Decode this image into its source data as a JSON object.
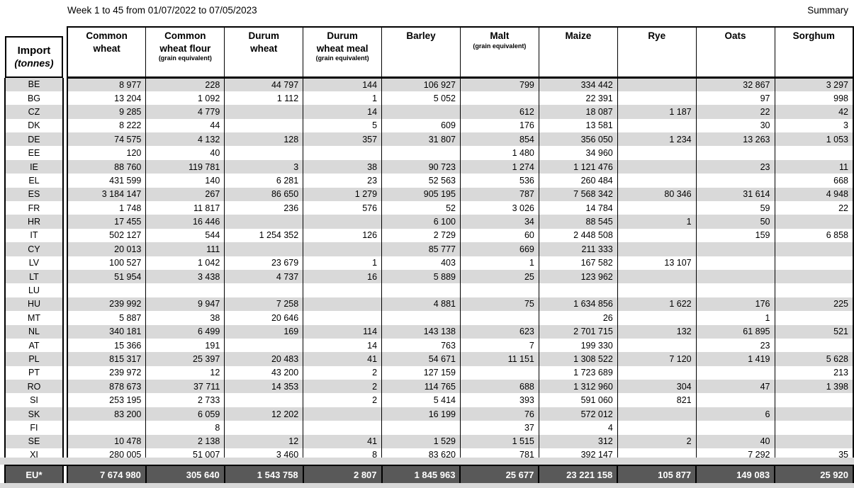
{
  "page": {
    "title": "Week 1 to 45 from 01/07/2022 to 07/05/2023",
    "summary_label": "Summary"
  },
  "table": {
    "corner": {
      "title": "Import",
      "subtitle": "(tonnes)"
    },
    "columns": [
      {
        "label": "Common\nwheat",
        "note": ""
      },
      {
        "label": "Common\nwheat flour",
        "note": "(grain equivalent)"
      },
      {
        "label": "Durum\nwheat",
        "note": ""
      },
      {
        "label": "Durum\nwheat meal",
        "note": "(grain equivalent)"
      },
      {
        "label": "Barley",
        "note": ""
      },
      {
        "label": "Malt",
        "note": "(grain equivalent)"
      },
      {
        "label": "Maize",
        "note": ""
      },
      {
        "label": "Rye",
        "note": ""
      },
      {
        "label": "Oats",
        "note": ""
      },
      {
        "label": "Sorghum",
        "note": ""
      }
    ],
    "rows": [
      {
        "code": "BE",
        "values": [
          "8 977",
          "228",
          "44 797",
          "144",
          "106 927",
          "799",
          "334 442",
          "",
          "32 867",
          "3 297"
        ]
      },
      {
        "code": "BG",
        "values": [
          "13 204",
          "1 092",
          "1 112",
          "1",
          "5 052",
          "",
          "22 391",
          "",
          "97",
          "998"
        ]
      },
      {
        "code": "CZ",
        "values": [
          "9 285",
          "4 779",
          "",
          "14",
          "",
          "612",
          "18 087",
          "1 187",
          "22",
          "42"
        ]
      },
      {
        "code": "DK",
        "values": [
          "8 222",
          "44",
          "",
          "5",
          "609",
          "176",
          "13 581",
          "",
          "30",
          "3"
        ]
      },
      {
        "code": "DE",
        "values": [
          "74 575",
          "4 132",
          "128",
          "357",
          "31 807",
          "854",
          "356 050",
          "1 234",
          "13 263",
          "1 053"
        ]
      },
      {
        "code": "EE",
        "values": [
          "120",
          "40",
          "",
          "",
          "",
          "1 480",
          "34 960",
          "",
          "",
          ""
        ]
      },
      {
        "code": "IE",
        "values": [
          "88 760",
          "119 781",
          "3",
          "38",
          "90 723",
          "1 274",
          "1 121 476",
          "",
          "23",
          "11"
        ]
      },
      {
        "code": "EL",
        "values": [
          "431 599",
          "140",
          "6 281",
          "23",
          "52 563",
          "536",
          "260 484",
          "",
          "",
          "668"
        ]
      },
      {
        "code": "ES",
        "values": [
          "3 184 147",
          "267",
          "86 650",
          "1 279",
          "905 195",
          "787",
          "7 568 342",
          "80 346",
          "31 614",
          "4 948"
        ]
      },
      {
        "code": "FR",
        "values": [
          "1 748",
          "11 817",
          "236",
          "576",
          "52",
          "3 026",
          "14 784",
          "",
          "59",
          "22"
        ]
      },
      {
        "code": "HR",
        "values": [
          "17 455",
          "16 446",
          "",
          "",
          "6 100",
          "34",
          "88 545",
          "1",
          "50",
          ""
        ]
      },
      {
        "code": "IT",
        "values": [
          "502 127",
          "544",
          "1 254 352",
          "126",
          "2 729",
          "60",
          "2 448 508",
          "",
          "159",
          "6 858"
        ]
      },
      {
        "code": "CY",
        "values": [
          "20 013",
          "111",
          "",
          "",
          "85 777",
          "669",
          "211 333",
          "",
          "",
          ""
        ]
      },
      {
        "code": "LV",
        "values": [
          "100 527",
          "1 042",
          "23 679",
          "1",
          "403",
          "1",
          "167 582",
          "13 107",
          "",
          ""
        ]
      },
      {
        "code": "LT",
        "values": [
          "51 954",
          "3 438",
          "4 737",
          "16",
          "5 889",
          "25",
          "123 962",
          "",
          "",
          ""
        ]
      },
      {
        "code": "LU",
        "values": [
          "",
          "",
          "",
          "",
          "",
          "",
          "",
          "",
          "",
          ""
        ]
      },
      {
        "code": "HU",
        "values": [
          "239 992",
          "9 947",
          "7 258",
          "",
          "4 881",
          "75",
          "1 634 856",
          "1 622",
          "176",
          "225"
        ]
      },
      {
        "code": "MT",
        "values": [
          "5 887",
          "38",
          "20 646",
          "",
          "",
          "",
          "26",
          "",
          "1",
          ""
        ]
      },
      {
        "code": "NL",
        "values": [
          "340 181",
          "6 499",
          "169",
          "114",
          "143 138",
          "623",
          "2 701 715",
          "132",
          "61 895",
          "521"
        ]
      },
      {
        "code": "AT",
        "values": [
          "15 366",
          "191",
          "",
          "14",
          "763",
          "7",
          "199 330",
          "",
          "23",
          ""
        ]
      },
      {
        "code": "PL",
        "values": [
          "815 317",
          "25 397",
          "20 483",
          "41",
          "54 671",
          "11 151",
          "1 308 522",
          "7 120",
          "1 419",
          "5 628"
        ]
      },
      {
        "code": "PT",
        "values": [
          "239 972",
          "12",
          "43 200",
          "2",
          "127 159",
          "",
          "1 723 689",
          "",
          "",
          "213"
        ]
      },
      {
        "code": "RO",
        "values": [
          "878 673",
          "37 711",
          "14 353",
          "2",
          "114 765",
          "688",
          "1 312 960",
          "304",
          "47",
          "1 398"
        ]
      },
      {
        "code": "SI",
        "values": [
          "253 195",
          "2 733",
          "",
          "2",
          "5 414",
          "393",
          "591 060",
          "821",
          "",
          ""
        ]
      },
      {
        "code": "SK",
        "values": [
          "83 200",
          "6 059",
          "12 202",
          "",
          "16 199",
          "76",
          "572 012",
          "",
          "6",
          ""
        ]
      },
      {
        "code": "FI",
        "values": [
          "",
          "8",
          "",
          "",
          "",
          "37",
          "4",
          "",
          "",
          ""
        ]
      },
      {
        "code": "SE",
        "values": [
          "10 478",
          "2 138",
          "12",
          "41",
          "1 529",
          "1 515",
          "312",
          "2",
          "40",
          ""
        ]
      },
      {
        "code": "XI",
        "values": [
          "280 005",
          "51 007",
          "3 460",
          "8",
          "83 620",
          "781",
          "392 147",
          "",
          "7 292",
          "35"
        ]
      }
    ],
    "total": {
      "code": "EU*",
      "values": [
        "7 674 980",
        "305 640",
        "1 543 758",
        "2 807",
        "1 845 963",
        "25 677",
        "23 221 158",
        "105 877",
        "149 083",
        "25 920"
      ]
    }
  }
}
